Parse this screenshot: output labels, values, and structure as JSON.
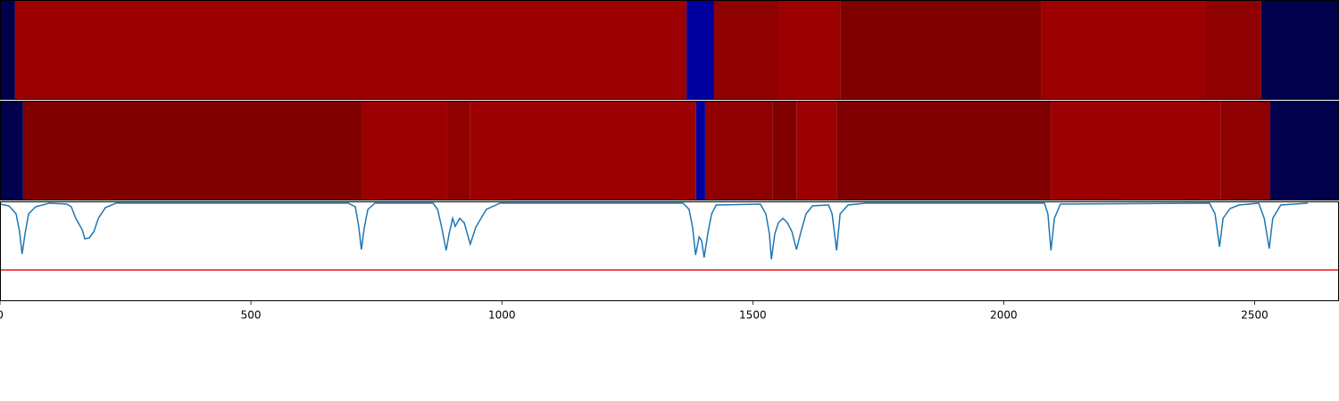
{
  "chart_data": [
    {
      "type": "heatmap",
      "colormap": "seismic",
      "vlim": [
        -1,
        1
      ],
      "xlim": [
        0,
        2668
      ],
      "edges": [
        0,
        30,
        1368,
        1423,
        1551,
        1674,
        2074,
        2403,
        2513,
        2668
      ],
      "values": [
        -1,
        0.89,
        -0.77,
        0.94,
        0.89,
        1,
        0.89,
        0.94,
        -1
      ]
    },
    {
      "type": "heatmap",
      "colormap": "seismic",
      "vlim": [
        -1,
        1
      ],
      "xlim": [
        0,
        2668
      ],
      "edges": [
        0,
        46,
        722,
        891,
        937,
        1387,
        1405,
        1539,
        1587,
        1667,
        2095,
        2432,
        2531,
        2668
      ],
      "values": [
        -1,
        1,
        0.89,
        0.94,
        0.89,
        -0.77,
        0.94,
        1,
        0.89,
        1,
        0.89,
        0.94,
        -1
      ]
    },
    {
      "type": "line",
      "color": "#1f77b4",
      "xlim": [
        0,
        2668
      ],
      "ylim": [
        0,
        112
      ],
      "xticks": [
        0,
        500,
        1000,
        1500,
        2000,
        2500
      ],
      "threshold": 35,
      "threshold_color": "#e8191c",
      "x": [
        0,
        18,
        32,
        39,
        44,
        50,
        57,
        71,
        98,
        133,
        142,
        151,
        164,
        169,
        178,
        187,
        196,
        210,
        231,
        694,
        708,
        715,
        720,
        726,
        733,
        747,
        863,
        872,
        880,
        889,
        895,
        902,
        907,
        916,
        925,
        937,
        948,
        969,
        996,
        1361,
        1373,
        1380,
        1386,
        1393,
        1398,
        1403,
        1411,
        1418,
        1427,
        1515,
        1526,
        1533,
        1537,
        1544,
        1551,
        1560,
        1569,
        1578,
        1587,
        1596,
        1606,
        1619,
        1651,
        1658,
        1667,
        1674,
        1690,
        1725,
        2081,
        2088,
        2094,
        2101,
        2113,
        2410,
        2421,
        2430,
        2437,
        2451,
        2469,
        2508,
        2519,
        2529,
        2536,
        2552,
        2606
      ],
      "values": [
        109,
        107,
        98,
        78,
        53,
        76,
        98,
        106,
        110,
        109,
        106,
        93,
        80,
        70,
        71,
        78,
        93,
        105,
        110,
        110,
        106,
        83,
        58,
        83,
        103,
        110,
        110,
        103,
        83,
        57,
        76,
        93,
        84,
        93,
        88,
        64,
        83,
        103,
        110,
        110,
        103,
        83,
        52,
        72,
        68,
        49,
        78,
        98,
        108,
        109,
        98,
        76,
        47,
        76,
        88,
        93,
        88,
        78,
        58,
        78,
        98,
        107,
        108,
        98,
        57,
        98,
        108,
        110,
        110,
        98,
        57,
        93,
        109,
        110,
        98,
        61,
        93,
        104,
        108,
        110,
        93,
        59,
        93,
        108,
        110
      ]
    }
  ]
}
